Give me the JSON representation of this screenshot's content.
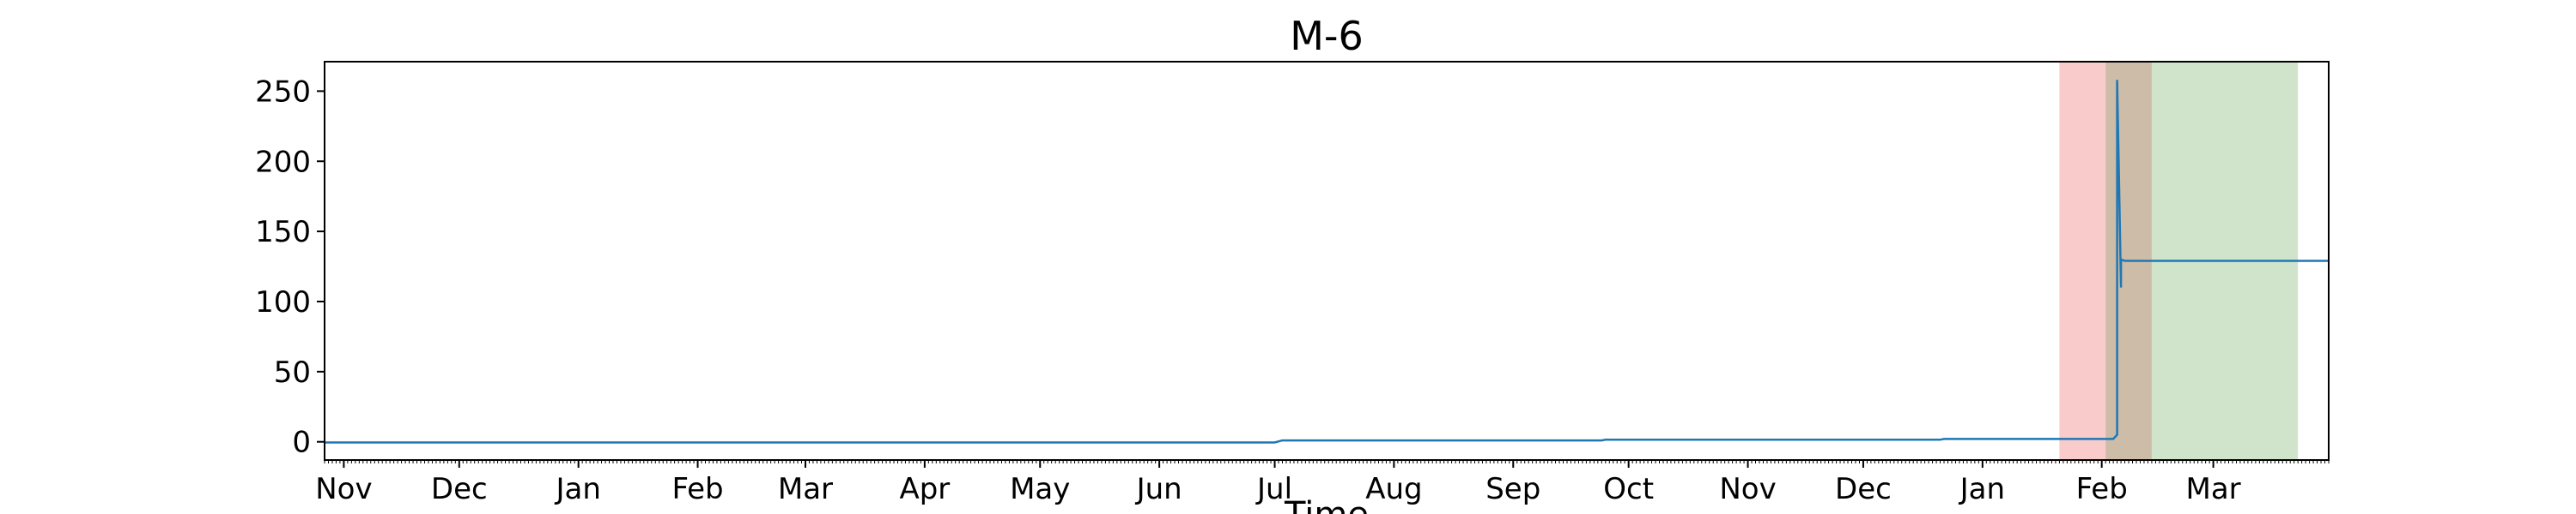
{
  "chart_data": {
    "type": "line",
    "title": "M-6",
    "xlabel": "Time",
    "ylabel": "",
    "x_ticks": [
      "Nov",
      "Dec",
      "Jan",
      "Feb",
      "Mar",
      "Apr",
      "May",
      "Jun",
      "Jul",
      "Aug",
      "Sep",
      "Oct",
      "Nov",
      "Dec",
      "Jan",
      "Feb",
      "Mar"
    ],
    "y_ticks": [
      0,
      50,
      100,
      150,
      200,
      250
    ],
    "x_range": [
      "2022-10-27",
      "2024-03-31"
    ],
    "y_range": [
      -13,
      271
    ],
    "grid": false,
    "legend": "none",
    "series": [
      {
        "color": "#1f77b4",
        "x": [
          "2022-10-27",
          "2023-07-01",
          "2023-07-03",
          "2023-09-24",
          "2023-09-25",
          "2023-12-21",
          "2023-12-22",
          "2024-02-04",
          "2024-02-05",
          "2024-02-05",
          "2024-02-06",
          "2024-02-06",
          "2024-02-07",
          "2024-02-08",
          "2024-03-31"
        ],
        "y": [
          -0.5,
          -0.5,
          1,
          1,
          1.5,
          1.5,
          2,
          2,
          5,
          258,
          110,
          130,
          129,
          129,
          129
        ]
      }
    ],
    "shaded_regions": [
      {
        "start": "2024-01-21",
        "end": "2024-02-02",
        "color": "#f7a8a8",
        "opacity": 0.6
      },
      {
        "start": "2024-02-02",
        "end": "2024-02-14",
        "color": "#c8b59e",
        "opacity": 0.9
      },
      {
        "start": "2024-02-14",
        "end": "2024-03-23",
        "color": "#cfe4ca",
        "opacity": 1.0
      }
    ]
  }
}
